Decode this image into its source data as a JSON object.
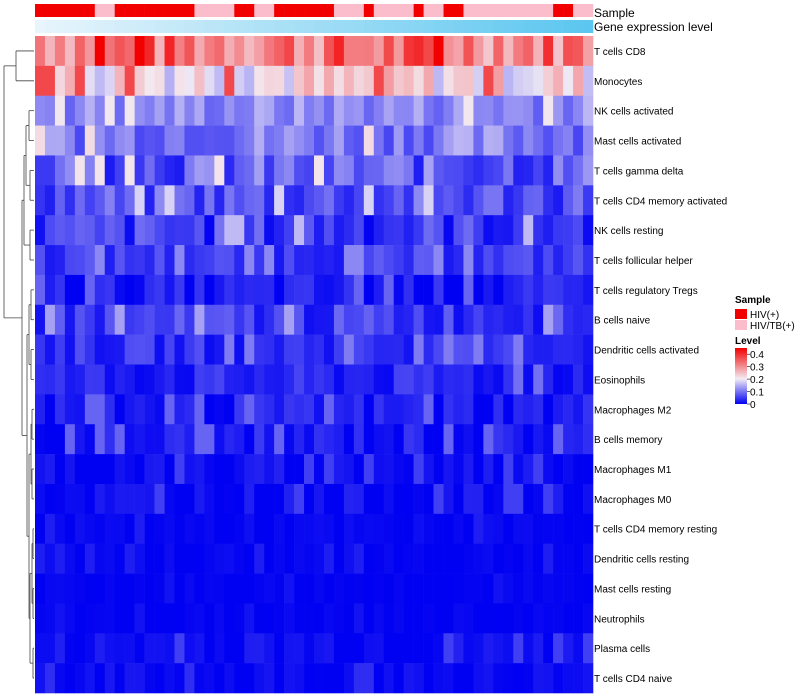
{
  "chart_data": {
    "type": "heatmap",
    "annotations": {
      "sample_track_label": "Sample",
      "expression_track_label": "Gene expression level",
      "sample_groups": [
        {
          "name": "HIV(+)",
          "color": "#f20000"
        },
        {
          "name": "HIV/TB(+)",
          "color": "#fbbccb"
        }
      ],
      "sample_assignment": [
        0,
        0,
        0,
        0,
        0,
        0,
        1,
        1,
        0,
        0,
        0,
        0,
        0,
        0,
        0,
        0,
        1,
        1,
        1,
        1,
        0,
        0,
        1,
        1,
        0,
        0,
        0,
        0,
        0,
        0,
        1,
        1,
        1,
        0,
        1,
        1,
        1,
        1,
        0,
        1,
        1,
        0,
        0,
        1,
        1,
        1,
        1,
        1,
        1,
        1,
        1,
        1,
        0,
        0,
        1,
        1
      ],
      "expression_gradient": [
        "#e8f5fc",
        "#5bc6ef"
      ]
    },
    "legend": {
      "sample_title": "Sample",
      "level_title": "Level",
      "level_ticks": [
        "0.4",
        "0.3",
        "0.2",
        "0.1",
        "0"
      ],
      "level_tick_values": [
        0.4,
        0.3,
        0.2,
        0.1,
        0
      ],
      "level_range": [
        0,
        0.45
      ],
      "colors": {
        "low": "#0000f2",
        "mid": "#f3ecf4",
        "high": "#f20000"
      }
    },
    "rows": [
      "T cells CD8",
      "Monocytes",
      "NK cells activated",
      "Mast cells activated",
      "T cells gamma delta",
      "T cells CD4 memory activated",
      "NK cells resting",
      "T cells follicular helper",
      "T cells regulatory  Tregs",
      "B cells naive",
      "Dendritic cells activated",
      "Eosinophils",
      "Macrophages M2",
      "B cells memory",
      "Macrophages M1",
      "Macrophages M0",
      "T cells CD4 memory resting",
      "Dendritic cells resting",
      "Mast cells resting",
      "Neutrophils",
      "Plasma cells",
      "T cells CD4 naive"
    ],
    "n_columns": 56,
    "row_profiles": {
      "T cells CD8": {
        "mean": 0.33,
        "spread": 0.09
      },
      "Monocytes": {
        "mean": 0.22,
        "spread": 0.07
      },
      "NK cells activated": {
        "mean": 0.12,
        "spread": 0.04
      },
      "Mast cells activated": {
        "mean": 0.11,
        "spread": 0.05
      },
      "T cells gamma delta": {
        "mean": 0.08,
        "spread": 0.06
      },
      "T cells CD4 memory activated": {
        "mean": 0.07,
        "spread": 0.05
      },
      "NK cells resting": {
        "mean": 0.05,
        "spread": 0.05
      },
      "T cells follicular helper": {
        "mean": 0.05,
        "spread": 0.03
      },
      "T cells regulatory  Tregs": {
        "mean": 0.02,
        "spread": 0.03
      },
      "B cells naive": {
        "mean": 0.05,
        "spread": 0.04
      },
      "Dendritic cells activated": {
        "mean": 0.04,
        "spread": 0.03
      },
      "Eosinophils": {
        "mean": 0.03,
        "spread": 0.03
      },
      "Macrophages M2": {
        "mean": 0.02,
        "spread": 0.03
      },
      "B cells memory": {
        "mean": 0.02,
        "spread": 0.03
      },
      "Macrophages M1": {
        "mean": 0.01,
        "spread": 0.02
      },
      "Macrophages M0": {
        "mean": 0.01,
        "spread": 0.02
      },
      "T cells CD4 memory resting": {
        "mean": 0.003,
        "spread": 0.01
      },
      "Dendritic cells resting": {
        "mean": 0.003,
        "spread": 0.01
      },
      "Mast cells resting": {
        "mean": 0.002,
        "spread": 0.006
      },
      "Neutrophils": {
        "mean": 0.002,
        "spread": 0.006
      },
      "Plasma cells": {
        "mean": 0.01,
        "spread": 0.02
      },
      "T cells CD4 naive": {
        "mean": 0.006,
        "spread": 0.015
      }
    },
    "row_dendrogram": "hierarchical clustering tree on the left"
  }
}
